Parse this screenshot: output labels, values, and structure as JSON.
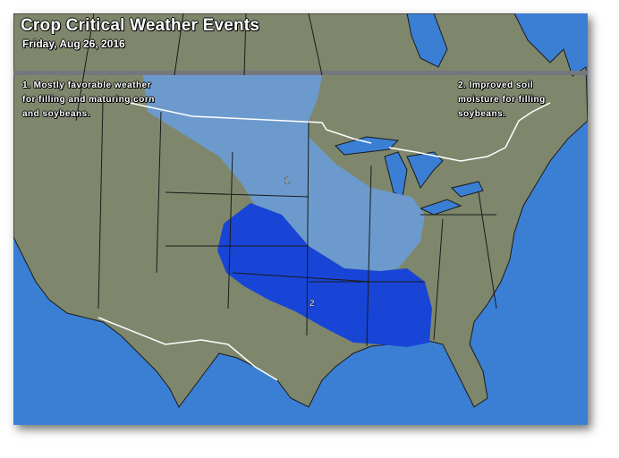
{
  "map": {
    "title": "Crop Critical Weather Events",
    "subtitle": "Friday, Aug 26, 2016",
    "notes": [
      {
        "number": "1",
        "text": "1. Mostly favorable weather for filling and maturing corn and soybeans."
      },
      {
        "number": "2",
        "text": "2. Improved soil moisture for filling soybeans."
      }
    ],
    "region_labels": [
      "1",
      "2"
    ],
    "colors": {
      "land": "#7e876c",
      "water": "#3b7fd4",
      "region_1": "#6c9bd2",
      "region_2": "#1845d6",
      "divider": "#76767e",
      "borders": "#ffffff"
    }
  }
}
